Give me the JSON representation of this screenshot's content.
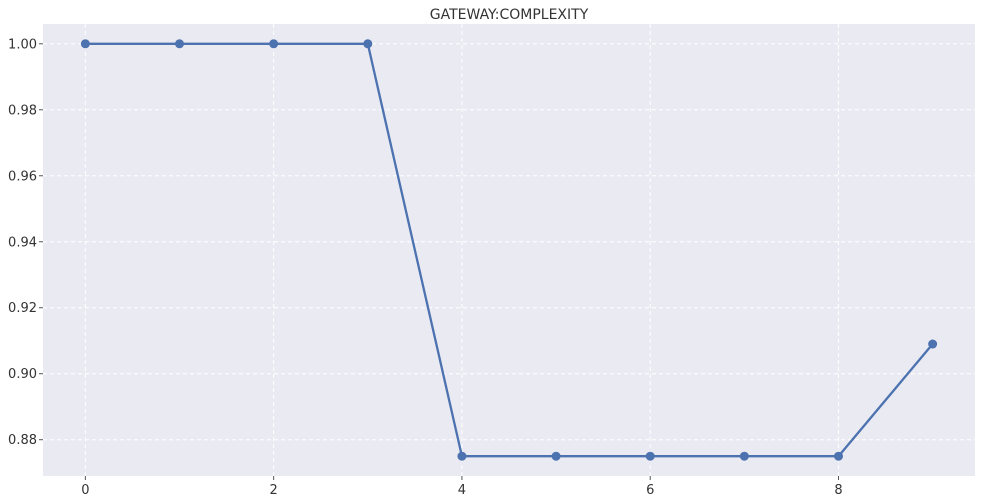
{
  "chart_data": {
    "type": "line",
    "title": "GATEWAY:COMPLEXITY",
    "xlabel": "",
    "ylabel": "",
    "x": [
      0,
      1,
      2,
      3,
      4,
      5,
      6,
      7,
      8,
      9
    ],
    "series": [
      {
        "values": [
          1.0,
          1.0,
          1.0,
          1.0,
          0.875,
          0.875,
          0.875,
          0.875,
          0.875,
          0.909
        ]
      }
    ],
    "xlim": [
      -0.45,
      9.45
    ],
    "ylim": [
      0.869,
      1.006
    ],
    "xticks": [
      0,
      2,
      4,
      6,
      8
    ],
    "xtick_labels": [
      "0",
      "2",
      "4",
      "6",
      "8"
    ],
    "yticks": [
      0.88,
      0.9,
      0.92,
      0.94,
      0.96,
      0.98,
      1.0
    ],
    "ytick_labels": [
      "0.88",
      "0.90",
      "0.92",
      "0.94",
      "0.96",
      "0.98",
      "1.00"
    ],
    "grid": true,
    "colors": {
      "line": "#4c72b0",
      "background": "#eaeaf2",
      "grid": "#ffffff"
    }
  }
}
